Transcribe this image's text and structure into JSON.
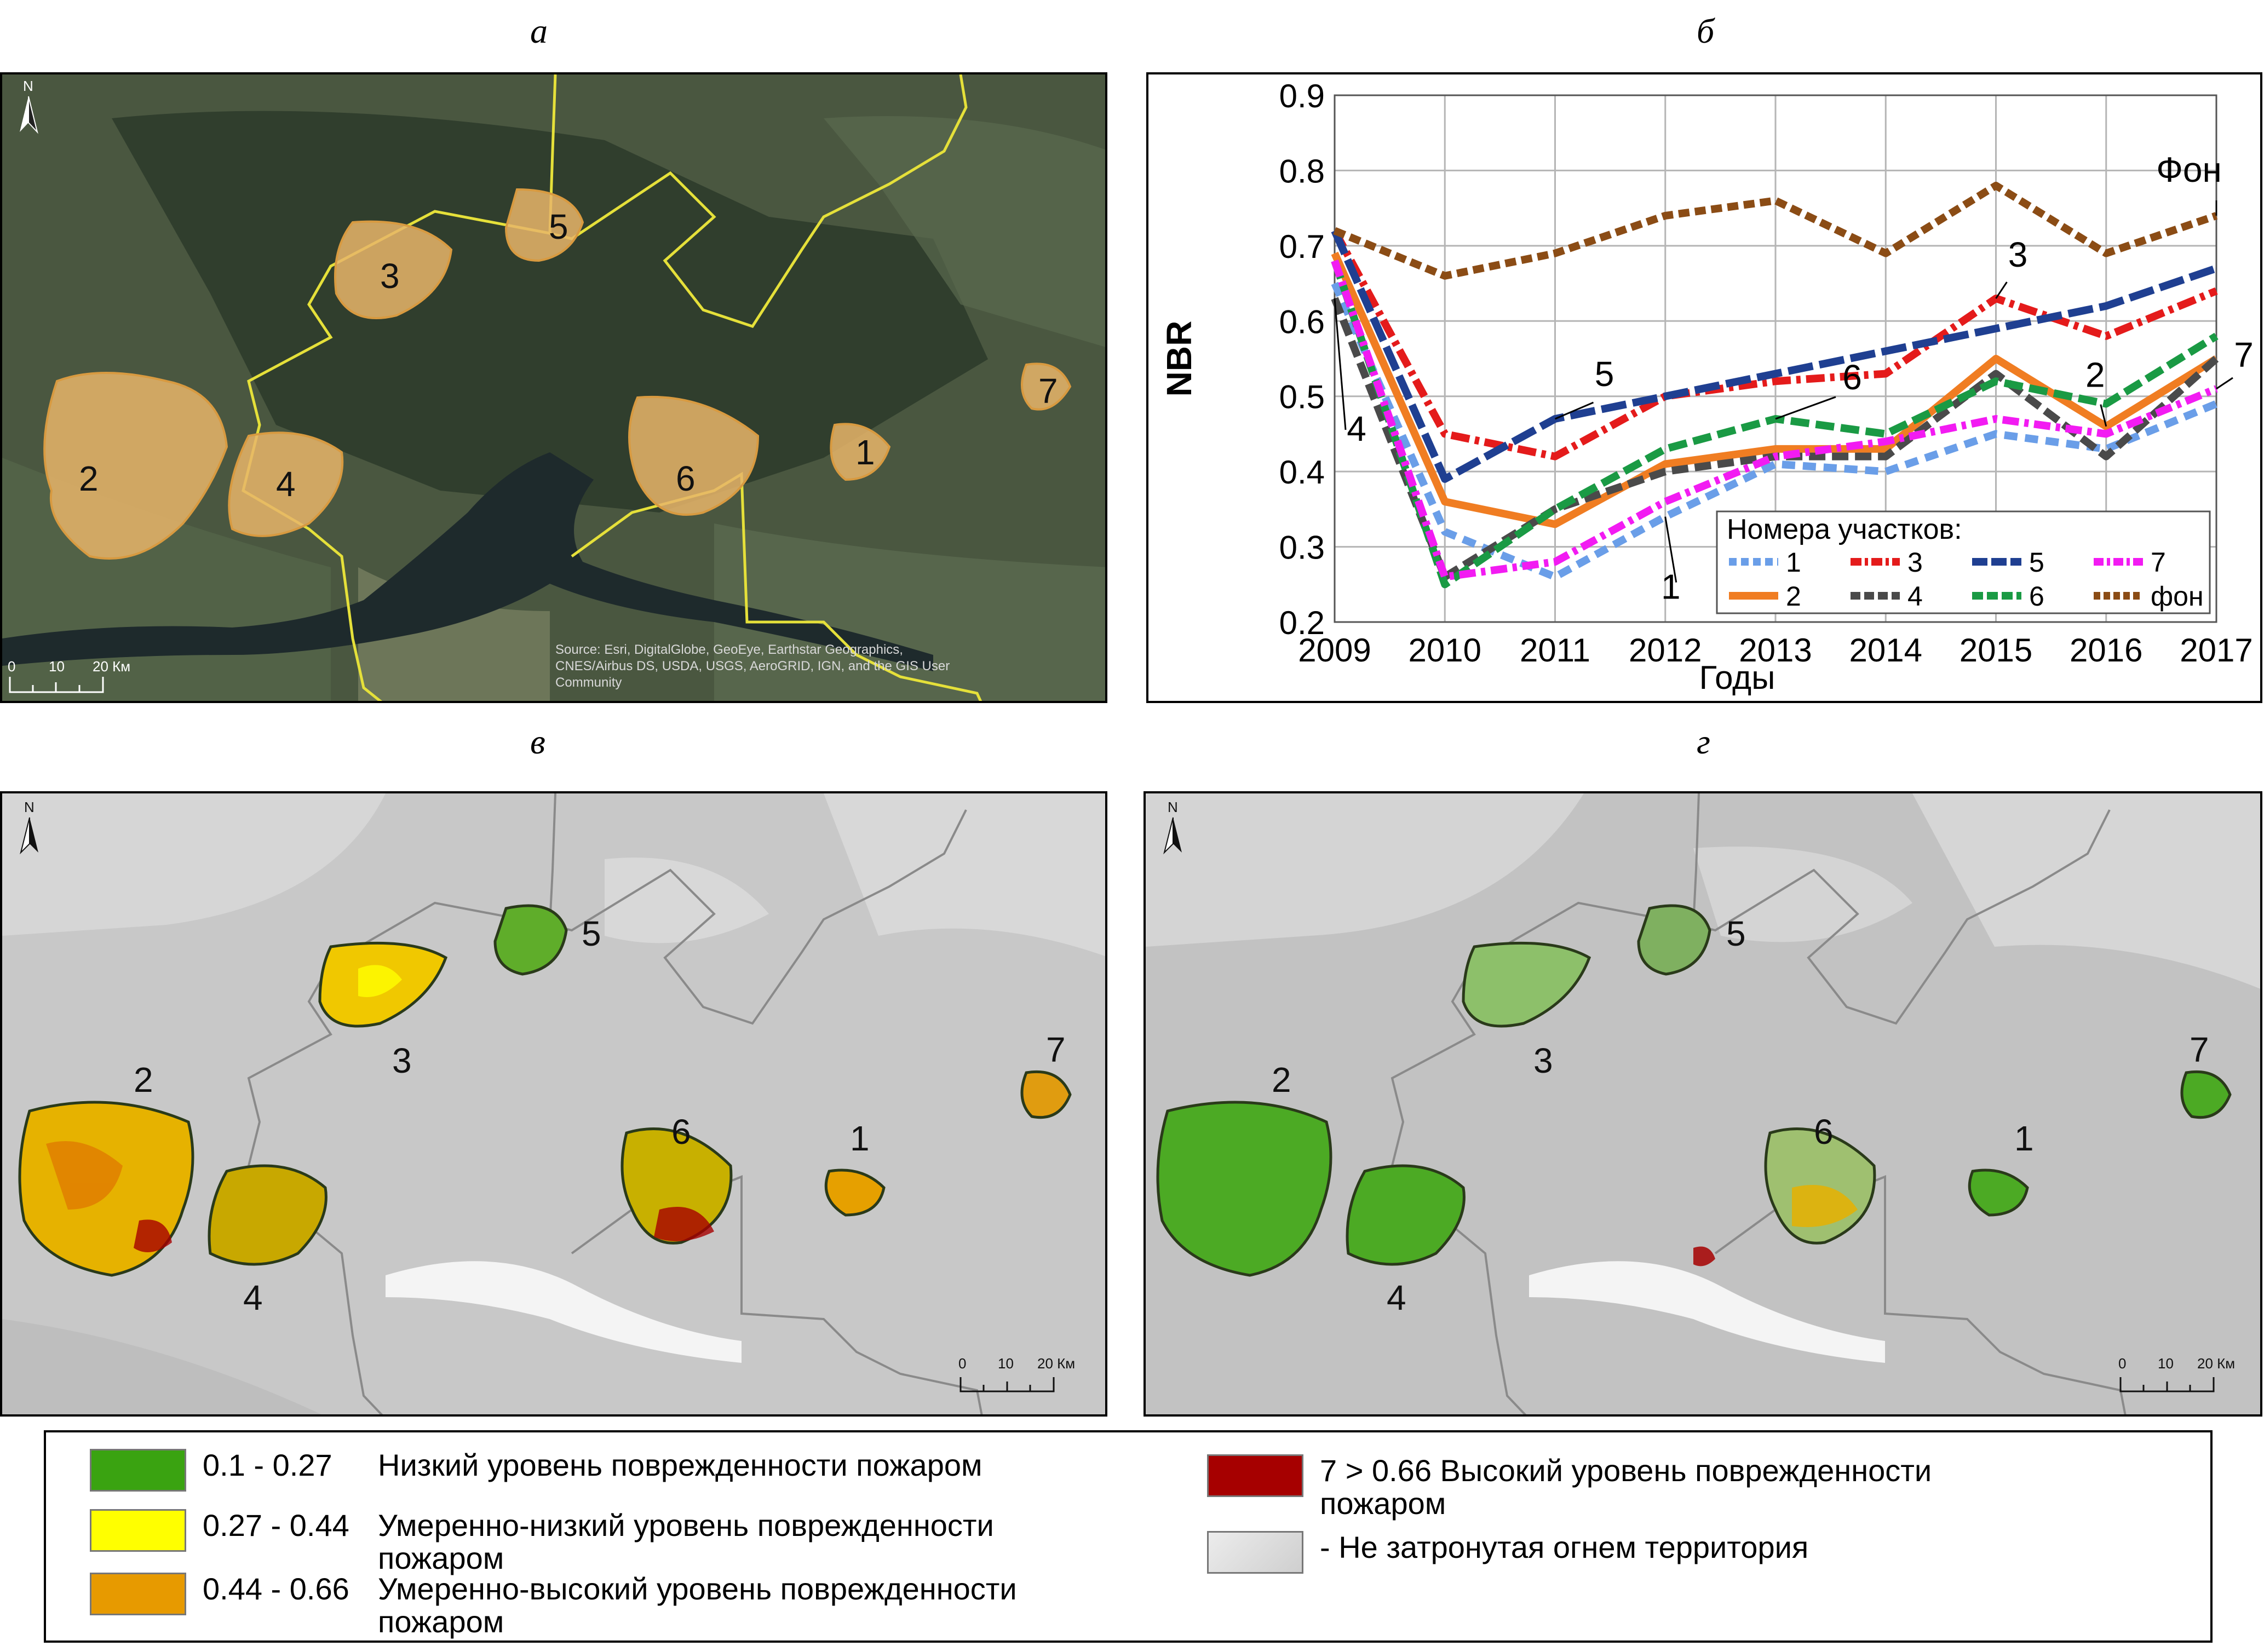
{
  "panel_letters": {
    "a": "а",
    "b": "б",
    "c": "в",
    "d": "г"
  },
  "map_a": {
    "north": "N",
    "site_labels": [
      "1",
      "2",
      "3",
      "4",
      "5",
      "6",
      "7"
    ],
    "scale": {
      "ticks": [
        "0",
        "10",
        "20 Км"
      ]
    },
    "attribution": [
      "Source: Esri, DigitalGlobe, GeoEye, Earthstar Geographics,",
      "CNES/Airbus DS, USDA, USGS, AeroGRID, IGN, and the GIS User",
      "Community"
    ],
    "colors": {
      "forest": "#3b4a35",
      "boundary": "#e5e03a",
      "fire": "#e8b56a",
      "river": "#1e2a2c"
    }
  },
  "map_c": {
    "north": "N",
    "site_labels": [
      "1",
      "2",
      "3",
      "4",
      "5",
      "6",
      "7"
    ],
    "scale": {
      "ticks": [
        "0",
        "10",
        "20 Км"
      ]
    }
  },
  "map_d": {
    "north": "N",
    "site_labels": [
      "1",
      "2",
      "3",
      "4",
      "5",
      "6",
      "7"
    ],
    "scale": {
      "ticks": [
        "0",
        "10",
        "20 Км"
      ]
    }
  },
  "chart_data": {
    "type": "line",
    "ylabel": "NBR",
    "xlabel": "Годы",
    "ylim": [
      0.2,
      0.9
    ],
    "yticks": [
      "0.2",
      "0.3",
      "0.4",
      "0.5",
      "0.6",
      "0.7",
      "0.8",
      "0.9"
    ],
    "categories": [
      "2009",
      "2010",
      "2011",
      "2012",
      "2013",
      "2014",
      "2015",
      "2016",
      "2017"
    ],
    "grid": true,
    "legend_title": "Номера участков:",
    "legend_position": "bottom-right",
    "series": [
      {
        "name": "1",
        "color": "#6a9ee8",
        "dash": "24 14",
        "values": [
          0.65,
          0.32,
          0.26,
          0.34,
          0.41,
          0.4,
          0.45,
          0.43,
          0.49
        ]
      },
      {
        "name": "2",
        "color": "#f07d22",
        "dash": "none",
        "values": [
          0.69,
          0.36,
          0.33,
          0.41,
          0.43,
          0.43,
          0.55,
          0.46,
          0.55
        ]
      },
      {
        "name": "3",
        "color": "#e41b1b",
        "dash": "34 10 8 10",
        "values": [
          0.72,
          0.45,
          0.42,
          0.5,
          0.52,
          0.53,
          0.63,
          0.58,
          0.64
        ]
      },
      {
        "name": "4",
        "color": "#4a4a4a",
        "dash": "30 12",
        "values": [
          0.63,
          0.26,
          0.35,
          0.4,
          0.42,
          0.42,
          0.53,
          0.42,
          0.55
        ]
      },
      {
        "name": "5",
        "color": "#1f3f91",
        "dash": "46 12",
        "values": [
          0.72,
          0.39,
          0.47,
          0.5,
          0.53,
          0.56,
          0.59,
          0.62,
          0.67
        ]
      },
      {
        "name": "6",
        "color": "#1a9a44",
        "dash": "34 12",
        "values": [
          0.68,
          0.25,
          0.35,
          0.43,
          0.47,
          0.45,
          0.52,
          0.49,
          0.58
        ]
      },
      {
        "name": "7",
        "color": "#f21bf2",
        "dash": "30 10 8 10",
        "values": [
          0.68,
          0.26,
          0.28,
          0.36,
          0.42,
          0.44,
          0.47,
          0.45,
          0.51
        ]
      },
      {
        "name": "фон",
        "color": "#8b4c15",
        "dash": "20 10",
        "values": [
          0.72,
          0.66,
          0.69,
          0.74,
          0.76,
          0.69,
          0.78,
          0.69,
          0.74
        ]
      }
    ],
    "annotations": [
      "Фон",
      "3",
      "5",
      "2",
      "6",
      "4",
      "1",
      "7"
    ]
  },
  "legend": {
    "items": [
      {
        "color": "#3aa311",
        "range": "0.1 - 0.27",
        "text": "Низкий уровень поврежденности пожаром"
      },
      {
        "color": "#ffff00",
        "range": "0.27 - 0.44",
        "text": "Умеренно-низкий уровень поврежденности",
        "text2": "пожаром"
      },
      {
        "color": "#e79a00",
        "range": "0.44 - 0.66",
        "text": "Умеренно-высокий уровень поврежденности",
        "text2": "пожаром"
      },
      {
        "color": "#a60000",
        "range": "7 > 0.66",
        "text": "Высокий уровень поврежденности",
        "text2": "пожаром"
      },
      {
        "color": "#d9d9d9",
        "range": "",
        "text": "- Не затронутая огнем территория"
      }
    ]
  }
}
